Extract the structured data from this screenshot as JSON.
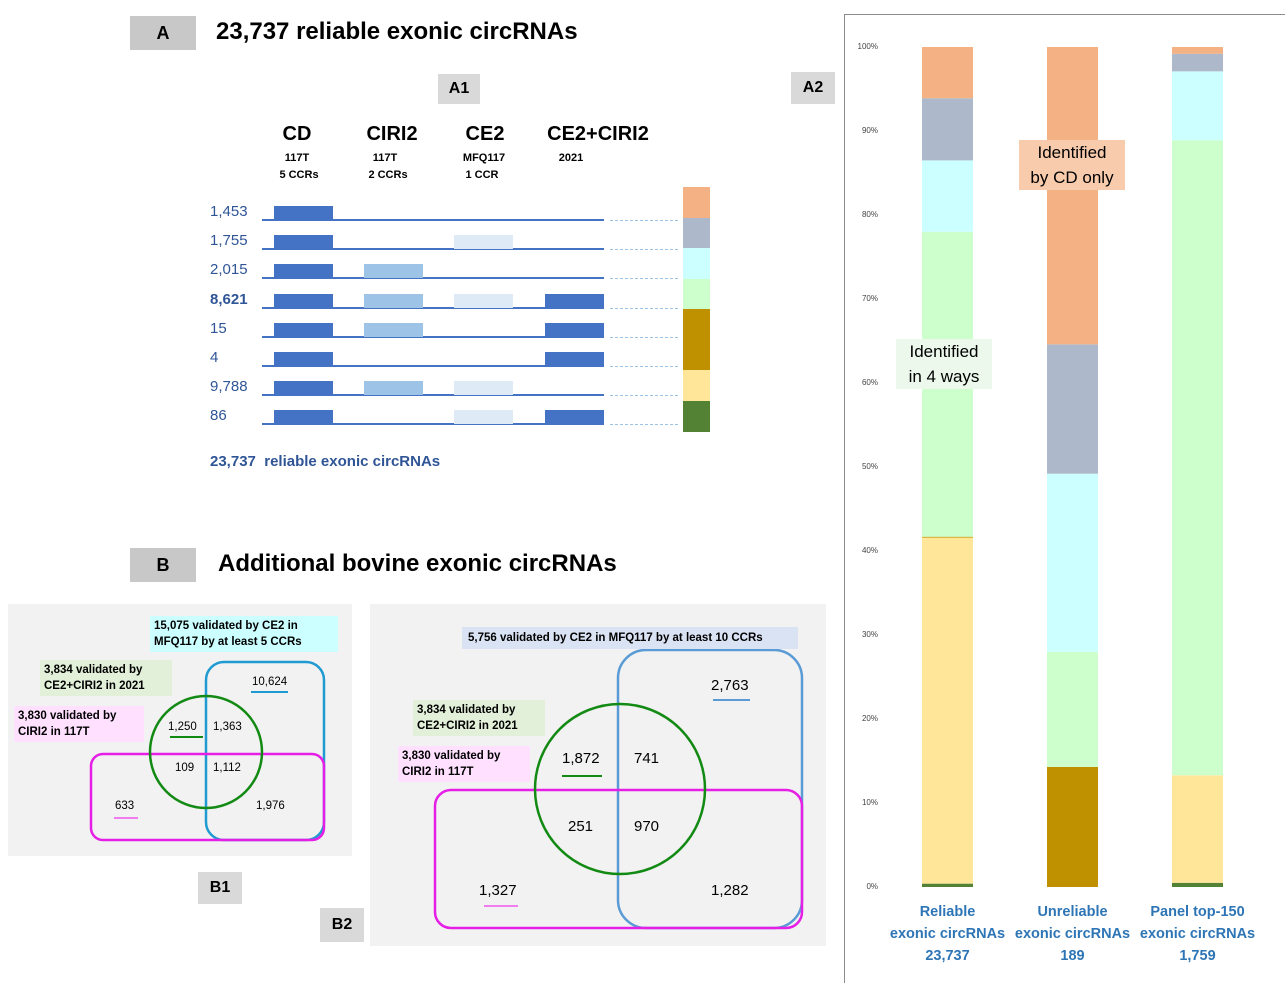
{
  "section_a": {
    "label": "A",
    "title": "23,737 reliable exonic circRNAs",
    "a1_label": "A1",
    "a2_label": "A2",
    "columns": [
      {
        "name": "CD",
        "sub1": "117T",
        "sub2": "5 CCRs"
      },
      {
        "name": "CIRI2",
        "sub1": "117T",
        "sub2": "2 CCRs"
      },
      {
        "name": "CE2",
        "sub1": "MFQ117",
        "sub2": "1 CCR"
      },
      {
        "name": "CE2+CIRI2",
        "sub1": "2021",
        "sub2": ""
      }
    ],
    "rows": [
      {
        "count": "1,453",
        "bold": false,
        "cd": true,
        "ciri2": false,
        "ce2": false,
        "ce2ciri2": false,
        "color": "#f4b183"
      },
      {
        "count": "1,755",
        "bold": false,
        "cd": true,
        "ciri2": false,
        "ce2": true,
        "ce2ciri2": false,
        "color": "#adb9ca"
      },
      {
        "count": "2,015",
        "bold": false,
        "cd": true,
        "ciri2": true,
        "ce2": false,
        "ce2ciri2": false,
        "color": "#ccffff"
      },
      {
        "count": "8,621",
        "bold": true,
        "cd": true,
        "ciri2": true,
        "ce2": true,
        "ce2ciri2": true,
        "color": "#ccffcc"
      },
      {
        "count": "15",
        "bold": false,
        "cd": true,
        "ciri2": true,
        "ce2": false,
        "ce2ciri2": true,
        "color": "#bf9000"
      },
      {
        "count": "4",
        "bold": false,
        "cd": true,
        "ciri2": false,
        "ce2": false,
        "ce2ciri2": true,
        "color": "#bf9000"
      },
      {
        "count": "9,788",
        "bold": false,
        "cd": true,
        "ciri2": true,
        "ce2": true,
        "ce2ciri2": false,
        "color": "#ffe699"
      },
      {
        "count": "86",
        "bold": false,
        "cd": true,
        "ciri2": false,
        "ce2": true,
        "ce2ciri2": true,
        "color": "#548235"
      }
    ],
    "total_number": "23,737",
    "total_label": "reliable exonic circRNAs"
  },
  "section_b": {
    "label": "B",
    "title": "Additional bovine exonic circRNAs",
    "b1": {
      "label": "B1",
      "ce2_tag": "15,075 validated by CE2 in MFQ117 by at least 5 CCRs",
      "green_tag": "3,834 validated by CE2+CIRI2 in 2021",
      "pink_tag": "3,830 validated by CIRI2 in 117T",
      "n_blue_only": "10,624",
      "n_green_only": "1,250",
      "n_green_blue": "1,363",
      "n_green_pink": "109",
      "n_all_three": "1,112",
      "n_pink_only": "633",
      "n_pink_blue": "1,976"
    },
    "b2": {
      "label": "B2",
      "ce2_tag": "5,756 validated by CE2 in MFQ117 by at least 10 CCRs",
      "green_tag": "3,834 validated by CE2+CIRI2 in 2021",
      "pink_tag": "3,830 validated by CIRI2 in 117T",
      "n_blue_only": "2,763",
      "n_green_only": "1,872",
      "n_green_blue": "741",
      "n_green_pink": "251",
      "n_all_three": "970",
      "n_pink_only": "1,327",
      "n_pink_blue": "1,282"
    }
  },
  "chart_data": {
    "type": "bar",
    "stacked": true,
    "normalized_percent": true,
    "categories": [
      "Reliable exonic circRNAs 23,737",
      "Unreliable exonic circRNAs 189",
      "Panel top-150 exonic circRNAs 1,759"
    ],
    "category_lines": [
      [
        "Reliable",
        "exonic circRNAs",
        "23,737"
      ],
      [
        "Unreliable",
        "exonic circRNAs",
        "189"
      ],
      [
        "Panel top-150",
        "exonic circRNAs",
        "1,759"
      ]
    ],
    "ylim": [
      0,
      100
    ],
    "y_ticks": [
      "0%",
      "10%",
      "20%",
      "30%",
      "40%",
      "50%",
      "60%",
      "70%",
      "80%",
      "90%",
      "100%"
    ],
    "series": [
      {
        "color": "#548235",
        "values": [
          0.4,
          0.0,
          0.5
        ]
      },
      {
        "color": "#ffe699",
        "values": [
          41.2,
          0.0,
          12.8
        ]
      },
      {
        "color": "#bf9000",
        "values": [
          0.1,
          14.3,
          0.0
        ]
      },
      {
        "color": "#ccffcc",
        "values": [
          36.3,
          13.7,
          75.6
        ]
      },
      {
        "color": "#ccffff",
        "values": [
          8.5,
          21.2,
          8.2
        ]
      },
      {
        "color": "#adb9ca",
        "values": [
          7.4,
          15.4,
          2.1
        ]
      },
      {
        "color": "#f4b183",
        "values": [
          6.1,
          35.4,
          0.8
        ]
      }
    ],
    "annotations": [
      {
        "lines": [
          "Identified",
          "in 4 ways"
        ],
        "bar": 0
      },
      {
        "lines": [
          "Identified",
          "by CD only"
        ],
        "bar": 1
      }
    ],
    "grid": false,
    "legend": "none"
  }
}
